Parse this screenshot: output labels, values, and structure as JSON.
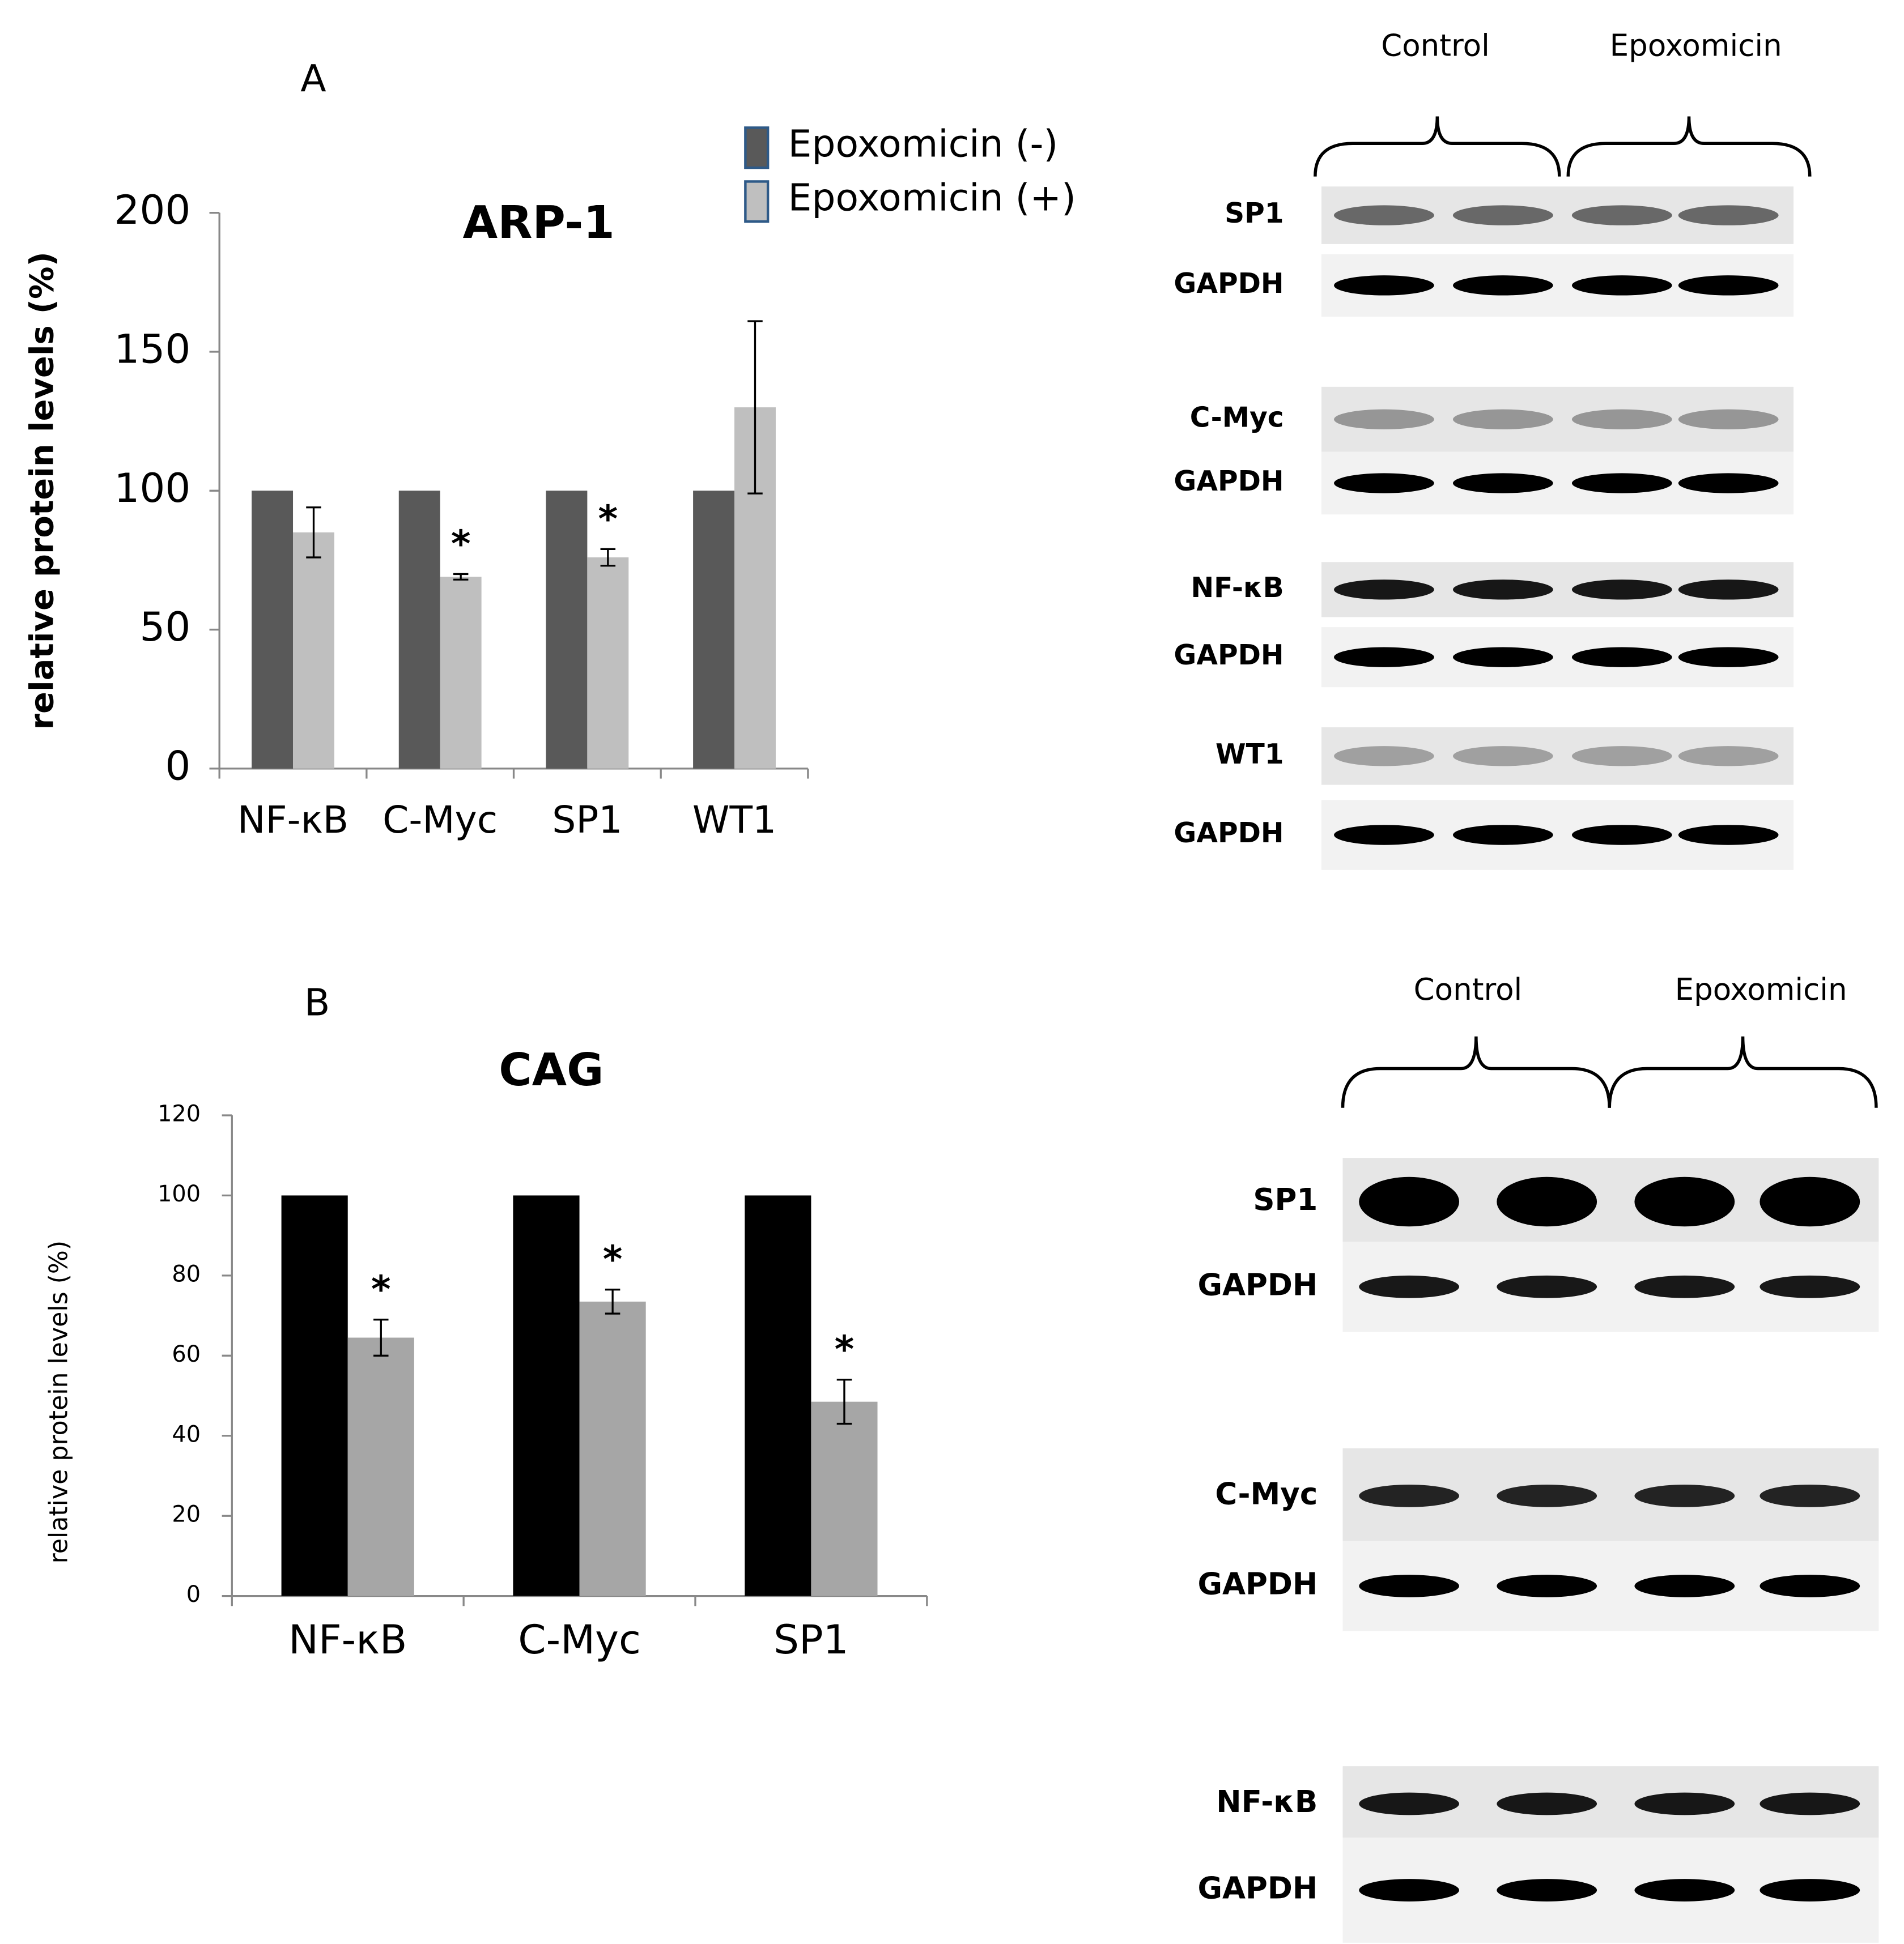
{
  "chart_data": [
    {
      "type": "bar",
      "panel": "A",
      "title": "ARP-1",
      "y_label": "relative protein levels (%)",
      "categories": [
        "NF-κB",
        "C-Myc",
        "SP1",
        "WT1"
      ],
      "series": [
        {
          "name": "Epoxomicin (-)",
          "color": "#595959",
          "values": [
            100,
            100,
            100,
            100
          ]
        },
        {
          "name": "Epoxomicin (+)",
          "color": "#bfbfbf",
          "values": [
            85,
            69,
            76,
            130
          ],
          "errors": [
            9,
            1,
            3,
            31
          ]
        }
      ],
      "significance": [
        null,
        "*",
        "*",
        null
      ],
      "ylim": [
        0,
        200
      ],
      "yticks": [
        0,
        50,
        100,
        150,
        200
      ]
    },
    {
      "type": "bar",
      "panel": "B",
      "title": "CAG",
      "y_label": "relative protein levels (%)",
      "categories": [
        "NF-κB",
        "C-Myc",
        "SP1"
      ],
      "series": [
        {
          "color": "#000000",
          "values": [
            100,
            100,
            100
          ]
        },
        {
          "color": "#a6a6a6",
          "values": [
            64.5,
            73.5,
            48.5
          ],
          "errors": [
            4.5,
            3,
            5.5
          ]
        }
      ],
      "significance": [
        "*",
        "*",
        "*"
      ],
      "ylim": [
        0,
        120
      ],
      "yticks": [
        0,
        20,
        40,
        60,
        80,
        100,
        120
      ]
    }
  ],
  "blots": [
    {
      "groups": [
        "Control",
        "Epoxomicin"
      ],
      "rows": [
        "SP1",
        "GAPDH",
        "C-Myc",
        "GAPDH",
        "NF-κB",
        "GAPDH",
        "WT1",
        "GAPDH"
      ]
    },
    {
      "groups": [
        "Control",
        "Epoxomicin"
      ],
      "rows": [
        "SP1",
        "GAPDH",
        "C-Myc",
        "GAPDH",
        "NF-κB",
        "GAPDH"
      ]
    }
  ]
}
